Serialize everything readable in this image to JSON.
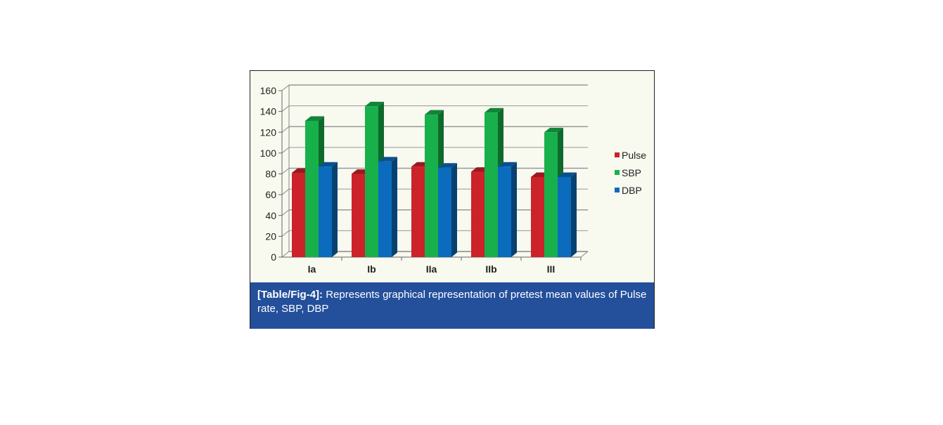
{
  "chart_data": {
    "type": "bar",
    "title": "",
    "xlabel": "",
    "ylabel": "",
    "categories": [
      "Ia",
      "Ib",
      "IIa",
      "IIb",
      "III"
    ],
    "series": [
      {
        "name": "Pulse",
        "color": "#cc2229",
        "values": [
          81,
          80,
          87,
          82,
          77
        ]
      },
      {
        "name": "SBP",
        "color": "#18b04a",
        "values": [
          131,
          145,
          137,
          139,
          120
        ]
      },
      {
        "name": "DBP",
        "color": "#0b6cbd",
        "values": [
          87,
          92,
          86,
          87,
          77
        ]
      }
    ],
    "ylim": [
      0,
      160
    ],
    "yticks": [
      0,
      20,
      40,
      60,
      80,
      100,
      120,
      140,
      160
    ],
    "grid": true,
    "legend_position": "right"
  },
  "caption": {
    "label": "[Table/Fig-4]:",
    "text": " Represents graphical representation of pretest mean values of Pulse rate, SBP, DBP"
  }
}
